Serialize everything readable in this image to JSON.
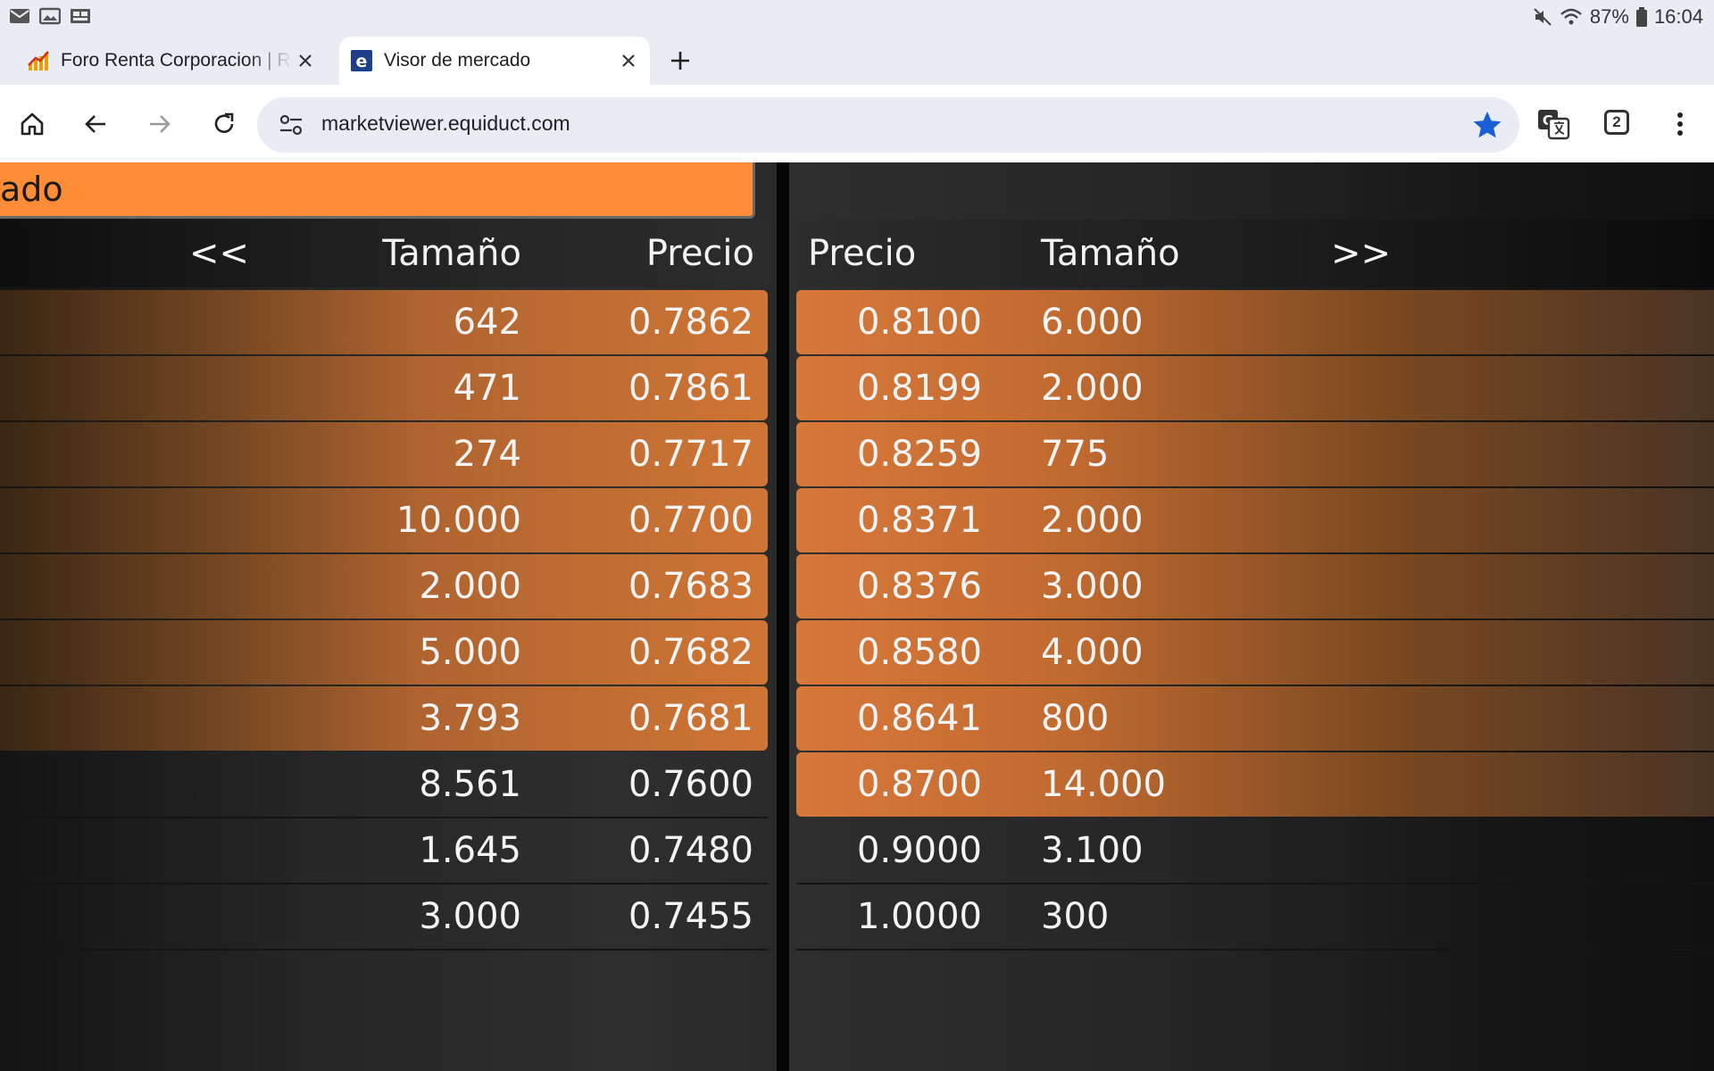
{
  "status_bar": {
    "battery": "87%",
    "time": "16:04",
    "icons": [
      "mail-icon",
      "image-icon",
      "gallery-icon",
      "mute-icon",
      "wifi-icon",
      "battery-icon"
    ]
  },
  "tabs": [
    {
      "title": "Foro Renta Corporacion | Re",
      "favicon": "chart-favicon",
      "active": false
    },
    {
      "title": "Visor de mercado",
      "favicon": "e-favicon",
      "active": true
    }
  ],
  "toolbar": {
    "url": "marketviewer.equiduct.com",
    "tab_count": "2",
    "colors": {
      "star": "#1a5fd6"
    }
  },
  "page": {
    "banner_text": "ado",
    "colors": {
      "accent": "#ff8c36"
    },
    "bid_header": {
      "nav": "<<",
      "size": "Tamaño",
      "price": "Precio"
    },
    "ask_header": {
      "price": "Precio",
      "size": "Tamaño",
      "nav": ">>"
    },
    "bids": [
      {
        "size": "642",
        "price": "0.7862",
        "highlight": true
      },
      {
        "size": "471",
        "price": "0.7861",
        "highlight": true
      },
      {
        "size": "274",
        "price": "0.7717",
        "highlight": true
      },
      {
        "size": "10.000",
        "price": "0.7700",
        "highlight": true
      },
      {
        "size": "2.000",
        "price": "0.7683",
        "highlight": true
      },
      {
        "size": "5.000",
        "price": "0.7682",
        "highlight": true
      },
      {
        "size": "3.793",
        "price": "0.7681",
        "highlight": true
      },
      {
        "size": "8.561",
        "price": "0.7600",
        "highlight": false
      },
      {
        "size": "1.645",
        "price": "0.7480",
        "highlight": false
      },
      {
        "size": "3.000",
        "price": "0.7455",
        "highlight": false
      }
    ],
    "asks": [
      {
        "price": "0.8100",
        "size": "6.000",
        "highlight": true
      },
      {
        "price": "0.8199",
        "size": "2.000",
        "highlight": true
      },
      {
        "price": "0.8259",
        "size": "775",
        "highlight": true
      },
      {
        "price": "0.8371",
        "size": "2.000",
        "highlight": true
      },
      {
        "price": "0.8376",
        "size": "3.000",
        "highlight": true
      },
      {
        "price": "0.8580",
        "size": "4.000",
        "highlight": true
      },
      {
        "price": "0.8641",
        "size": "800",
        "highlight": true
      },
      {
        "price": "0.8700",
        "size": "14.000",
        "highlight": true
      },
      {
        "price": "0.9000",
        "size": "3.100",
        "highlight": false
      },
      {
        "price": "1.0000",
        "size": "300",
        "highlight": false
      }
    ]
  }
}
